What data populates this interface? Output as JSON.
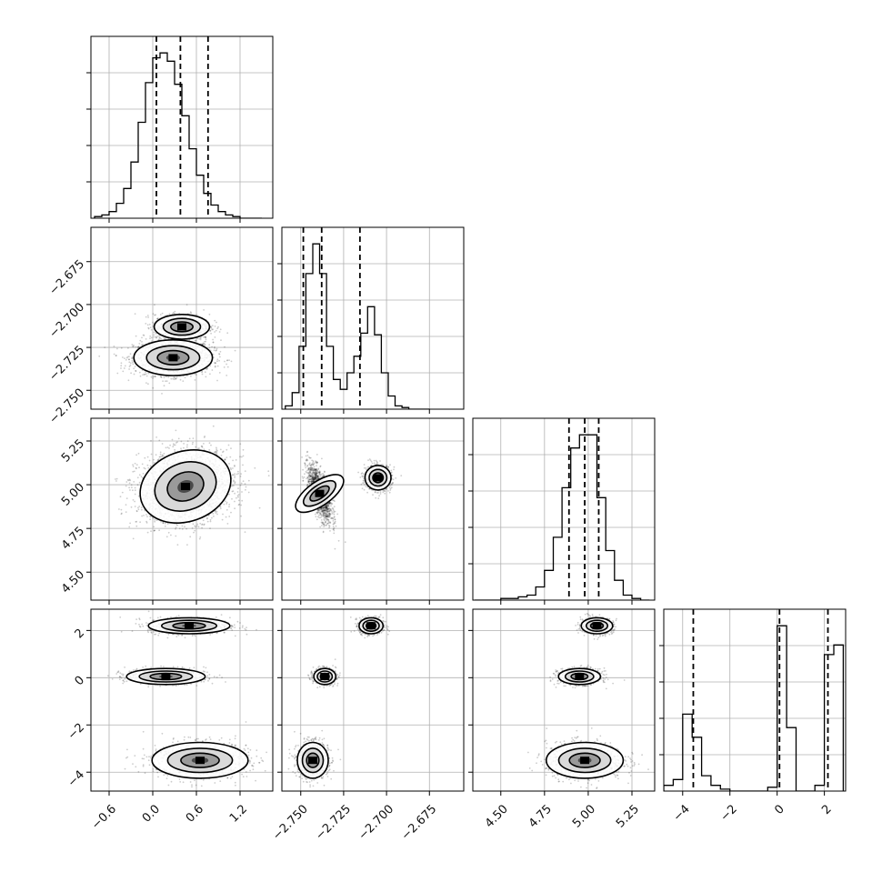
{
  "chart_data": {
    "type": "corner",
    "parameters": [
      {
        "range": [
          -0.85,
          1.65
        ],
        "ticks": [
          -0.6,
          0.0,
          0.6,
          1.2
        ],
        "tick_labels": [
          "−0.6",
          "0.0",
          "0.6",
          "1.2"
        ]
      },
      {
        "range": [
          -2.761,
          -2.655
        ],
        "ticks": [
          -2.75,
          -2.725,
          -2.7,
          -2.675
        ],
        "tick_labels": [
          "−2.750",
          "−2.725",
          "−2.700",
          "−2.675"
        ]
      },
      {
        "range": [
          4.34,
          5.38
        ],
        "ticks": [
          4.5,
          4.75,
          5.0,
          5.25
        ],
        "tick_labels": [
          "4.50",
          "4.75",
          "5.00",
          "5.25"
        ]
      },
      {
        "range": [
          -4.8,
          2.9
        ],
        "ticks": [
          -4,
          -2,
          0,
          2
        ],
        "tick_labels": [
          "−4",
          "−2",
          "0",
          "2"
        ]
      }
    ],
    "histograms": [
      {
        "bins": [
          -0.8,
          -0.7,
          -0.6,
          -0.5,
          -0.4,
          -0.3,
          -0.2,
          -0.1,
          0.0,
          0.1,
          0.2,
          0.3,
          0.4,
          0.5,
          0.6,
          0.7,
          0.8,
          0.9,
          1.0,
          1.1,
          1.2,
          1.3,
          1.4,
          1.5
        ],
        "counts": [
          1,
          2,
          4,
          9,
          18,
          34,
          58,
          82,
          97,
          100,
          95,
          81,
          62,
          42,
          26,
          15,
          8,
          4,
          2,
          1,
          0,
          0,
          0
        ],
        "quantiles": [
          0.05,
          0.38,
          0.76
        ]
      },
      {
        "bins": [
          -2.759,
          -2.755,
          -2.751,
          -2.747,
          -2.743,
          -2.739,
          -2.735,
          -2.731,
          -2.727,
          -2.723,
          -2.719,
          -2.715,
          -2.711,
          -2.707,
          -2.703,
          -2.699,
          -2.695,
          -2.691,
          -2.687,
          -2.683,
          -2.679,
          -2.675
        ],
        "counts": [
          2,
          10,
          38,
          82,
          100,
          82,
          38,
          18,
          12,
          22,
          32,
          46,
          62,
          45,
          22,
          8,
          2,
          1,
          0,
          0,
          0
        ],
        "quantiles": [
          -2.7485,
          -2.7378,
          -2.7155
        ]
      },
      {
        "bins": [
          4.35,
          4.4,
          4.45,
          4.5,
          4.55,
          4.6,
          4.65,
          4.7,
          4.75,
          4.8,
          4.85,
          4.9,
          4.95,
          5.0,
          5.05,
          5.1,
          5.15,
          5.2,
          5.25,
          5.3,
          5.35
        ],
        "counts": [
          0,
          0,
          0,
          1,
          1,
          2,
          3,
          8,
          18,
          38,
          68,
          92,
          100,
          100,
          62,
          30,
          12,
          3,
          1,
          0
        ],
        "quantiles": [
          4.89,
          4.98,
          5.06
        ]
      },
      {
        "bins": [
          -4.8,
          -4.4,
          -4.0,
          -3.6,
          -3.2,
          -2.8,
          -2.4,
          -2.0,
          -1.6,
          -1.2,
          -0.8,
          -0.4,
          0.0,
          0.4,
          0.8,
          1.2,
          1.6,
          2.0,
          2.4,
          2.8
        ],
        "counts": [
          3,
          6,
          40,
          28,
          8,
          3,
          1,
          0,
          0,
          0,
          0,
          2,
          86,
          33,
          0,
          0,
          3,
          71,
          76
        ],
        "quantiles": [
          -3.55,
          0.1,
          2.15
        ]
      }
    ],
    "pairs": [
      {
        "x": 0,
        "y": 1,
        "blobs": [
          {
            "cx": 0.28,
            "cy": -2.731,
            "sx": 0.27,
            "sy": 0.0052,
            "rho": 0.0,
            "w": 0.62
          },
          {
            "cx": 0.4,
            "cy": -2.713,
            "sx": 0.19,
            "sy": 0.0036,
            "rho": 0.0,
            "w": 0.38
          }
        ]
      },
      {
        "x": 0,
        "y": 2,
        "blobs": [
          {
            "cx": 0.45,
            "cy": 4.99,
            "sx": 0.32,
            "sy": 0.1,
            "rho": 0.15,
            "w": 1.0
          }
        ]
      },
      {
        "x": 0,
        "y": 3,
        "blobs": [
          {
            "cx": 0.65,
            "cy": -3.5,
            "sx": 0.33,
            "sy": 0.38,
            "rho": 0.0,
            "w": 0.4
          },
          {
            "cx": 0.18,
            "cy": 0.05,
            "sx": 0.27,
            "sy": 0.17,
            "rho": 0.0,
            "w": 0.3
          },
          {
            "cx": 0.5,
            "cy": 2.2,
            "sx": 0.28,
            "sy": 0.17,
            "rho": 0.0,
            "w": 0.3
          }
        ]
      },
      {
        "x": 1,
        "y": 2,
        "blobs": [
          {
            "cx": -2.739,
            "cy": 4.95,
            "sx": 0.0035,
            "sy": 0.08,
            "rho": -0.65,
            "w": 0.62
          },
          {
            "cx": -2.705,
            "cy": 5.04,
            "sx": 0.0038,
            "sy": 0.035,
            "rho": 0.0,
            "w": 0.38
          }
        ]
      },
      {
        "x": 1,
        "y": 3,
        "blobs": [
          {
            "cx": -2.743,
            "cy": -3.5,
            "sx": 0.0045,
            "sy": 0.38,
            "rho": 0.0,
            "w": 0.4
          },
          {
            "cx": -2.736,
            "cy": 0.05,
            "sx": 0.0032,
            "sy": 0.17,
            "rho": 0.0,
            "w": 0.3
          },
          {
            "cx": -2.709,
            "cy": 2.2,
            "sx": 0.0035,
            "sy": 0.17,
            "rho": 0.0,
            "w": 0.3
          }
        ]
      },
      {
        "x": 2,
        "y": 3,
        "blobs": [
          {
            "cx": 4.98,
            "cy": -3.5,
            "sx": 0.11,
            "sy": 0.38,
            "rho": 0.0,
            "w": 0.4
          },
          {
            "cx": 4.95,
            "cy": 0.05,
            "sx": 0.06,
            "sy": 0.17,
            "rho": 0.0,
            "w": 0.3
          },
          {
            "cx": 5.05,
            "cy": 2.2,
            "sx": 0.045,
            "sy": 0.17,
            "rho": 0.0,
            "w": 0.3
          }
        ]
      }
    ]
  }
}
